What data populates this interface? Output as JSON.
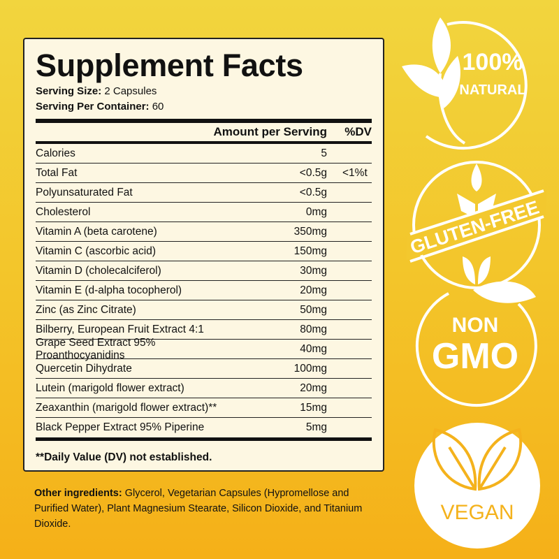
{
  "label": {
    "title": "Supplement Facts",
    "serving_size_label": "Serving Size:",
    "serving_size": "2 Capsules",
    "servings_label": "Serving Per Container:",
    "servings": "60",
    "col_amount": "Amount per Serving",
    "col_dv": "%DV",
    "rows": [
      {
        "name": "Calories",
        "amount": "5",
        "dv": ""
      },
      {
        "name": "Total Fat",
        "amount": "<0.5g",
        "dv": "<1%t"
      },
      {
        "name": "Polyunsaturated Fat",
        "amount": "<0.5g",
        "dv": ""
      },
      {
        "name": "Cholesterol",
        "amount": "0mg",
        "dv": ""
      },
      {
        "name": "Vitamin A (beta carotene)",
        "amount": "350mg",
        "dv": ""
      },
      {
        "name": "Vitamin C (ascorbic acid)",
        "amount": "150mg",
        "dv": ""
      },
      {
        "name": "Vitamin D (cholecalciferol)",
        "amount": "30mg",
        "dv": ""
      },
      {
        "name": "Vitamin E (d-alpha tocopherol)",
        "amount": "20mg",
        "dv": ""
      },
      {
        "name": "Zinc (as Zinc Citrate)",
        "amount": "50mg",
        "dv": ""
      },
      {
        "name": "Bilberry, European Fruit Extract 4:1",
        "amount": "80mg",
        "dv": ""
      },
      {
        "name": "Grape Seed Extract 95% Proanthocyanidins",
        "amount": "40mg",
        "dv": ""
      },
      {
        "name": "Quercetin Dihydrate",
        "amount": "100mg",
        "dv": ""
      },
      {
        "name": "Lutein (marigold flower extract)",
        "amount": "20mg",
        "dv": ""
      },
      {
        "name": "Zeaxanthin (marigold flower extract)**",
        "amount": "15mg",
        "dv": ""
      },
      {
        "name": "Black Pepper Extract 95% Piperine",
        "amount": "5mg",
        "dv": ""
      }
    ],
    "footnote": "**Daily Value (DV) not established."
  },
  "other": {
    "label": "Other ingredients:",
    "text": " Glycerol, Vegetarian Capsules (Hypromellose and Purified Water), Plant Magnesium Stearate, Silicon Dioxide, and Titanium Dioxide."
  },
  "badges": {
    "natural": {
      "line1": "100%",
      "line2": "NATURAL",
      "icon": "leaf-icon"
    },
    "gluten": {
      "text": "GLUTEN-FREE",
      "icon": "wheat-icon"
    },
    "gmo": {
      "line1": "NON",
      "line2": "GMO"
    },
    "vegan": {
      "text": "VEGAN",
      "icon": "leaves-icon"
    }
  },
  "colors": {
    "background_top": "#f2d53e",
    "background_bottom": "#f5b018",
    "panel": "#fdf7e2",
    "badge": "#ffffff"
  }
}
